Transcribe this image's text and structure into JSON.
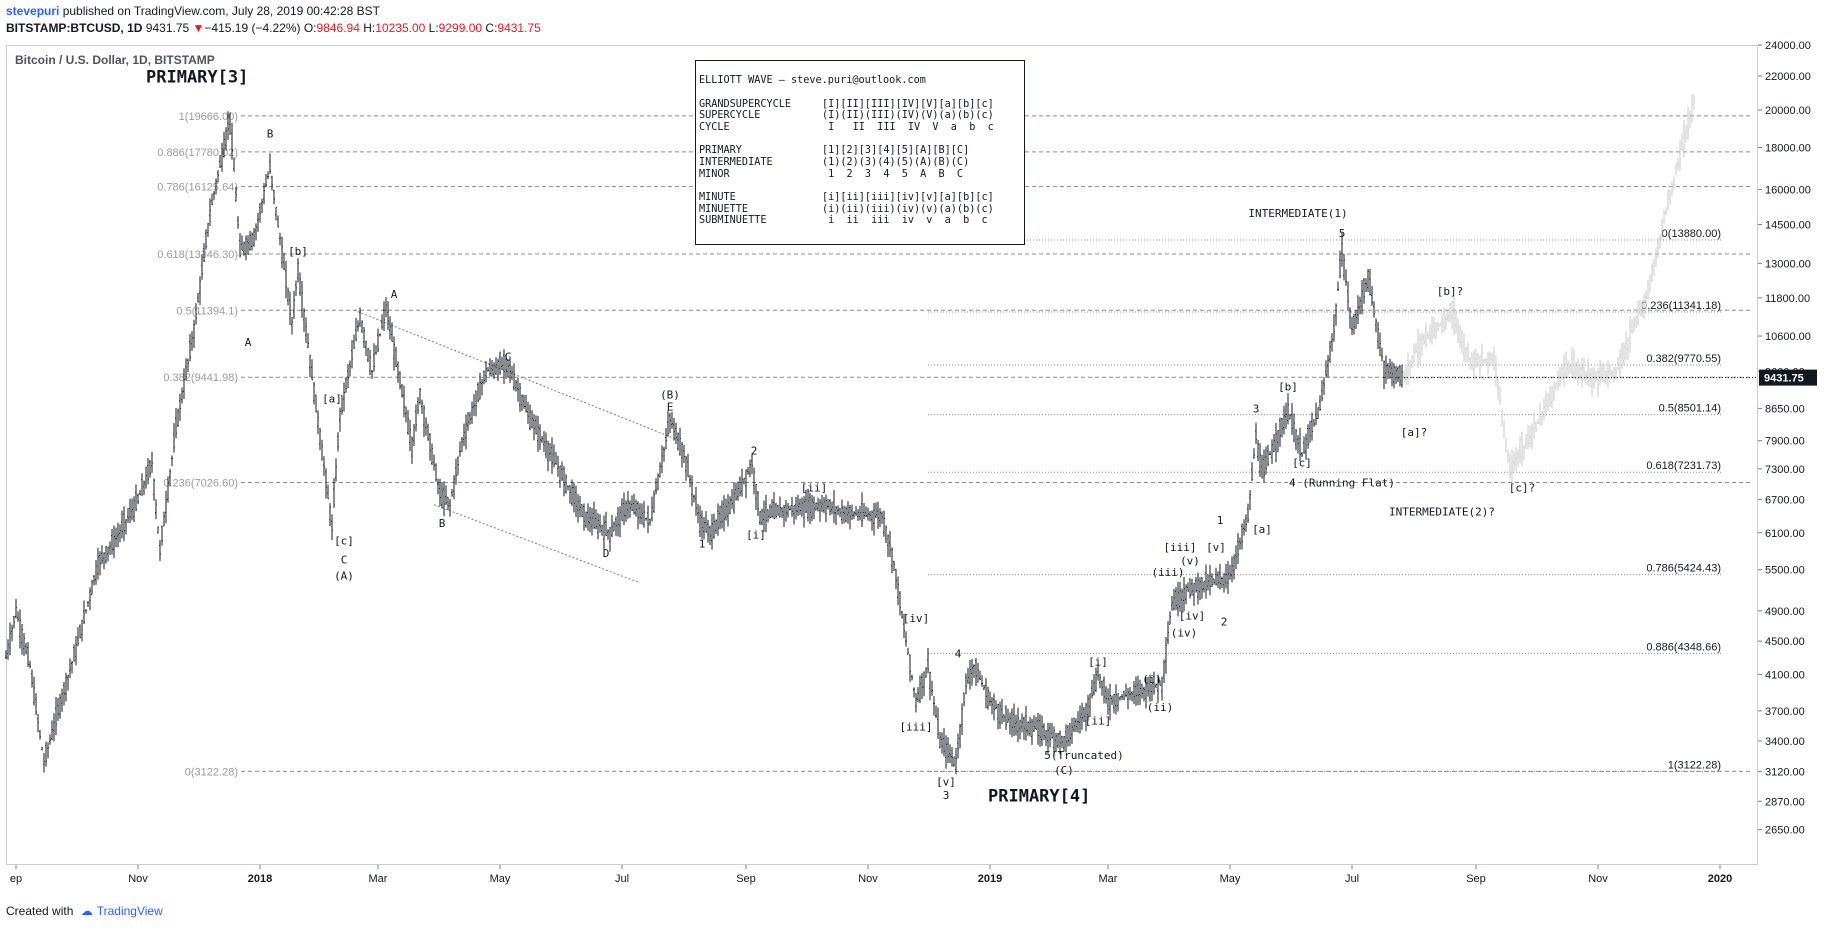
{
  "header": {
    "author": "stevepuri",
    "published_text": " published on TradingView.com, July 28, 2019 00:42:28 BST",
    "symbol": "BITSTAMP:BTCUSD, 1D",
    "last": "9431.75",
    "change_arrow": "▼",
    "change": "−415.19 (−4.22%)",
    "o_label": "O:",
    "o_value": "9846.94",
    "h_label": "H:",
    "h_value": "10235.00",
    "l_label": "L:",
    "l_value": "9299.00",
    "c_label": "C:",
    "c_value": "9431.75"
  },
  "footer": {
    "created_with": "Created with",
    "brand": "TradingView"
  },
  "legend": {
    "title": "ELLIOTT WAVE — steve.puri@outlook.com",
    "groups": [
      [
        {
          "name": "GRANDSUPERCYCLE",
          "value": "[I][II][III][IV][V][a][b][c]"
        },
        {
          "name": "SUPERCYCLE",
          "value": "(I)(II)(III)(IV)(V)(a)(b)(c)"
        },
        {
          "name": "CYCLE",
          "value": " I   II  III  IV  V  a  b  c"
        }
      ],
      [
        {
          "name": "PRIMARY",
          "value": "[1][2][3][4][5][A][B][C]"
        },
        {
          "name": "INTERMEDIATE",
          "value": "(1)(2)(3)(4)(5)(A)(B)(C)"
        },
        {
          "name": "MINOR",
          "value": " 1  2  3  4  5  A  B  C"
        }
      ],
      [
        {
          "name": "MINUTE",
          "value": "[i][ii][iii][iv][v][a][b][c]"
        },
        {
          "name": "MINUETTE",
          "value": "(i)(ii)(iii)(iv)(v)(a)(b)(c)"
        },
        {
          "name": "SUBMINUETTE",
          "value": " i  ii  iii  iv  v  a  b  c"
        }
      ]
    ]
  },
  "chart_data": {
    "type": "ohlc",
    "title": "Bitcoin / U.S. Dollar, 1D, BITSTAMP",
    "scale": "log",
    "ylim": [
      2400,
      24000
    ],
    "xlim": [
      "2017-08-27",
      "2020-01-20"
    ],
    "y_ticks": [
      "24000.00",
      "22000.00",
      "20000.00",
      "18000.00",
      "16000.00",
      "14500.00",
      "13000.00",
      "11800.00",
      "10600.00",
      "9600.00",
      "8650.00",
      "7900.00",
      "7300.00",
      "6700.00",
      "6100.00",
      "5500.00",
      "4900.00",
      "4500.00",
      "4100.00",
      "3700.00",
      "3400.00",
      "3120.00",
      "2870.00",
      "2650.00"
    ],
    "x_ticks": [
      {
        "date": "2017-09-01",
        "label": "ep"
      },
      {
        "date": "2017-11-01",
        "label": "Nov"
      },
      {
        "date": "2018-01-01",
        "label": "2018"
      },
      {
        "date": "2018-03-01",
        "label": "Mar"
      },
      {
        "date": "2018-05-01",
        "label": "May"
      },
      {
        "date": "2018-07-01",
        "label": "Jul"
      },
      {
        "date": "2018-09-01",
        "label": "Sep"
      },
      {
        "date": "2018-11-01",
        "label": "Nov"
      },
      {
        "date": "2019-01-01",
        "label": "2019"
      },
      {
        "date": "2019-03-01",
        "label": "Mar"
      },
      {
        "date": "2019-05-01",
        "label": "May"
      },
      {
        "date": "2019-07-01",
        "label": "Jul"
      },
      {
        "date": "2019-09-01",
        "label": "Sep"
      },
      {
        "date": "2019-11-01",
        "label": "Nov"
      },
      {
        "date": "2020-01-01",
        "label": "2020"
      }
    ],
    "last_price": {
      "value": 9431.75,
      "label": "9431.75"
    },
    "colors": {
      "bars": "#131722",
      "projection": "#c9c9c9",
      "fib": "#8a8a8a",
      "last_price_bg": "#131722"
    },
    "price_path": [
      [
        "2017-08-27",
        4300
      ],
      [
        "2017-09-01",
        4900
      ],
      [
        "2017-09-08",
        4200
      ],
      [
        "2017-09-15",
        3200
      ],
      [
        "2017-09-22",
        3700
      ],
      [
        "2017-10-01",
        4400
      ],
      [
        "2017-10-12",
        5600
      ],
      [
        "2017-10-21",
        6000
      ],
      [
        "2017-11-01",
        6700
      ],
      [
        "2017-11-08",
        7400
      ],
      [
        "2017-11-12",
        5800
      ],
      [
        "2017-11-20",
        8200
      ],
      [
        "2017-11-29",
        10800
      ],
      [
        "2017-12-07",
        15000
      ],
      [
        "2017-12-17",
        19600
      ],
      [
        "2017-12-22",
        13500
      ],
      [
        "2017-12-29",
        14000
      ],
      [
        "2018-01-06",
        17000
      ],
      [
        "2018-01-17",
        11000
      ],
      [
        "2018-01-20",
        12800
      ],
      [
        "2018-02-06",
        6200
      ],
      [
        "2018-02-10",
        8500
      ],
      [
        "2018-02-20",
        11200
      ],
      [
        "2018-02-26",
        9600
      ],
      [
        "2018-03-05",
        11500
      ],
      [
        "2018-03-18",
        7800
      ],
      [
        "2018-03-22",
        9000
      ],
      [
        "2018-04-01",
        6800
      ],
      [
        "2018-04-06",
        6600
      ],
      [
        "2018-04-12",
        7900
      ],
      [
        "2018-04-24",
        9600
      ],
      [
        "2018-05-05",
        9800
      ],
      [
        "2018-05-15",
        8500
      ],
      [
        "2018-05-29",
        7400
      ],
      [
        "2018-06-12",
        6400
      ],
      [
        "2018-06-25",
        6100
      ],
      [
        "2018-07-04",
        6600
      ],
      [
        "2018-07-15",
        6300
      ],
      [
        "2018-07-25",
        8400
      ],
      [
        "2018-08-01",
        7600
      ],
      [
        "2018-08-09",
        6300
      ],
      [
        "2018-08-14",
        6100
      ],
      [
        "2018-08-26",
        6700
      ],
      [
        "2018-09-04",
        7400
      ],
      [
        "2018-09-08",
        6400
      ],
      [
        "2018-09-20",
        6500
      ],
      [
        "2018-10-10",
        6600
      ],
      [
        "2018-10-20",
        6450
      ],
      [
        "2018-11-08",
        6400
      ],
      [
        "2018-11-14",
        5600
      ],
      [
        "2018-11-20",
        4500
      ],
      [
        "2018-11-25",
        3800
      ],
      [
        "2018-12-01",
        4200
      ],
      [
        "2018-12-07",
        3400
      ],
      [
        "2018-12-15",
        3200
      ],
      [
        "2018-12-20",
        4000
      ],
      [
        "2018-12-24",
        4200
      ],
      [
        "2019-01-01",
        3800
      ],
      [
        "2019-01-10",
        3600
      ],
      [
        "2019-01-20",
        3550
      ],
      [
        "2019-02-07",
        3400
      ],
      [
        "2019-02-18",
        3700
      ],
      [
        "2019-02-24",
        4100
      ],
      [
        "2019-03-01",
        3800
      ],
      [
        "2019-03-15",
        3900
      ],
      [
        "2019-03-28",
        4000
      ],
      [
        "2019-04-02",
        5000
      ],
      [
        "2019-04-10",
        5200
      ],
      [
        "2019-04-20",
        5300
      ],
      [
        "2019-05-01",
        5400
      ],
      [
        "2019-05-10",
        6400
      ],
      [
        "2019-05-14",
        8000
      ],
      [
        "2019-05-17",
        7200
      ],
      [
        "2019-05-30",
        8600
      ],
      [
        "2019-06-06",
        7600
      ],
      [
        "2019-06-15",
        8700
      ],
      [
        "2019-06-22",
        10800
      ],
      [
        "2019-06-26",
        13500
      ],
      [
        "2019-07-01",
        10800
      ],
      [
        "2019-07-09",
        12500
      ],
      [
        "2019-07-17",
        9700
      ],
      [
        "2019-07-27",
        9431
      ]
    ],
    "projection_path": [
      [
        "2019-07-27",
        9431
      ],
      [
        "2019-08-03",
        10300
      ],
      [
        "2019-08-20",
        11300
      ],
      [
        "2019-08-30",
        9800
      ],
      [
        "2019-09-10",
        10000
      ],
      [
        "2019-09-18",
        7300
      ],
      [
        "2019-10-01",
        8200
      ],
      [
        "2019-10-16",
        9800
      ],
      [
        "2019-10-30",
        9400
      ],
      [
        "2019-11-10",
        9600
      ],
      [
        "2019-11-25",
        11800
      ],
      [
        "2019-12-05",
        15000
      ],
      [
        "2019-12-13",
        18000
      ],
      [
        "2019-12-20",
        21000
      ]
    ],
    "fib_left": [
      {
        "label": "1(19666.00)",
        "value": 19666
      },
      {
        "label": "0.886(17780.02)",
        "value": 17780
      },
      {
        "label": "0.786(16125.64)",
        "value": 16125
      },
      {
        "label": "0.618(13346.30)",
        "value": 13346
      },
      {
        "label": "0.5(11394.1)",
        "value": 11394
      },
      {
        "label": "0.382(9441.98)",
        "value": 9442
      },
      {
        "label": "0.236(7026.60)",
        "value": 7026
      },
      {
        "label": "0(3122.28)",
        "value": 3122
      }
    ],
    "fib_right": [
      {
        "label": "0(13880.00)",
        "value": 13880
      },
      {
        "label": "0.236(11341.18)",
        "value": 11341
      },
      {
        "label": "0.382(9770.55)",
        "value": 9770
      },
      {
        "label": "0.5(8501.14)",
        "value": 8501
      },
      {
        "label": "0.618(7231.73)",
        "value": 7231
      },
      {
        "label": "0.786(5424.43)",
        "value": 5424
      },
      {
        "label": "0.886(4348.66)",
        "value": 4348
      },
      {
        "label": "1(3122.28)",
        "value": 3122
      }
    ],
    "trendlines": [
      {
        "from": [
          "2018-02-17",
          11400
        ],
        "to": [
          "2018-07-30",
          7900
        ]
      },
      {
        "from": [
          "2018-03-29",
          6600
        ],
        "to": [
          "2018-07-10",
          5300
        ]
      }
    ],
    "annotations": [
      {
        "text": "PRIMARY[3]",
        "date": "2017-11-05",
        "price": 21600,
        "big": true
      },
      {
        "text": "PRIMARY[4]",
        "date": "2018-12-31",
        "price": 2870,
        "big": true
      },
      {
        "text": "A",
        "date": "2017-12-26",
        "price": 10300
      },
      {
        "text": "B",
        "date": "2018-01-06",
        "price": 18500
      },
      {
        "text": "[b]",
        "date": "2018-01-20",
        "price": 13300
      },
      {
        "text": "[a]",
        "date": "2018-02-06",
        "price": 8800
      },
      {
        "text": "[c]",
        "date": "2018-02-12",
        "price": 5900
      },
      {
        "text": "C",
        "date": "2018-02-12",
        "price": 5600
      },
      {
        "text": "(A)",
        "date": "2018-02-12",
        "price": 5350
      },
      {
        "text": "A",
        "date": "2018-03-09",
        "price": 11800
      },
      {
        "text": "B",
        "date": "2018-04-02",
        "price": 6200
      },
      {
        "text": "C",
        "date": "2018-05-05",
        "price": 9900
      },
      {
        "text": "(B)",
        "date": "2018-07-25",
        "price": 8900
      },
      {
        "text": "E",
        "date": "2018-07-25",
        "price": 8600
      },
      {
        "text": "D",
        "date": "2018-06-23",
        "price": 5700
      },
      {
        "text": "1",
        "date": "2018-08-10",
        "price": 5850
      },
      {
        "text": "2",
        "date": "2018-09-05",
        "price": 7600
      },
      {
        "text": "[i]",
        "date": "2018-09-06",
        "price": 6000
      },
      {
        "text": "[ii]",
        "date": "2018-10-05",
        "price": 6850
      },
      {
        "text": "[iv]",
        "date": "2018-11-25",
        "price": 4750
      },
      {
        "text": "4",
        "date": "2018-12-16",
        "price": 4300
      },
      {
        "text": "[iii]",
        "date": "2018-11-25",
        "price": 3500
      },
      {
        "text": "[v]",
        "date": "2018-12-10",
        "price": 3000
      },
      {
        "text": "3",
        "date": "2018-12-10",
        "price": 2890
      },
      {
        "text": "5(Truncated)",
        "date": "2019-02-17",
        "price": 3230
      },
      {
        "text": "(C)",
        "date": "2019-02-07",
        "price": 3100
      },
      {
        "text": "[i]",
        "date": "2019-02-24",
        "price": 4200
      },
      {
        "text": "[ii]",
        "date": "2019-02-24",
        "price": 3560
      },
      {
        "text": "(i)",
        "date": "2019-03-23",
        "price": 4000
      },
      {
        "text": "(ii)",
        "date": "2019-03-27",
        "price": 3700
      },
      {
        "text": "(iii)",
        "date": "2019-03-31",
        "price": 5400
      },
      {
        "text": "[iii]",
        "date": "2019-04-06",
        "price": 5800
      },
      {
        "text": "(v)",
        "date": "2019-04-11",
        "price": 5580
      },
      {
        "text": "[v]",
        "date": "2019-04-24",
        "price": 5800
      },
      {
        "text": "[iv]",
        "date": "2019-04-12",
        "price": 4780
      },
      {
        "text": "(iv)",
        "date": "2019-04-08",
        "price": 4560
      },
      {
        "text": "1",
        "date": "2019-04-26",
        "price": 6250
      },
      {
        "text": "2",
        "date": "2019-04-28",
        "price": 4700
      },
      {
        "text": "3",
        "date": "2019-05-14",
        "price": 8550
      },
      {
        "text": "[a]",
        "date": "2019-05-17",
        "price": 6100
      },
      {
        "text": "[b]",
        "date": "2019-05-30",
        "price": 9100
      },
      {
        "text": "[c]",
        "date": "2019-06-06",
        "price": 7350
      },
      {
        "text": "4 (Running Flat)",
        "date": "2019-06-26",
        "price": 6950
      },
      {
        "text": "INTERMEDIATE(1)",
        "date": "2019-06-04",
        "price": 14800
      },
      {
        "text": "5",
        "date": "2019-06-26",
        "price": 14000
      },
      {
        "text": "[b]?",
        "date": "2019-08-19",
        "price": 11900
      },
      {
        "text": "[a]?",
        "date": "2019-08-01",
        "price": 8000
      },
      {
        "text": "[c]?",
        "date": "2019-09-24",
        "price": 6850
      },
      {
        "text": "INTERMEDIATE(2)?",
        "date": "2019-08-15",
        "price": 6400
      }
    ]
  }
}
